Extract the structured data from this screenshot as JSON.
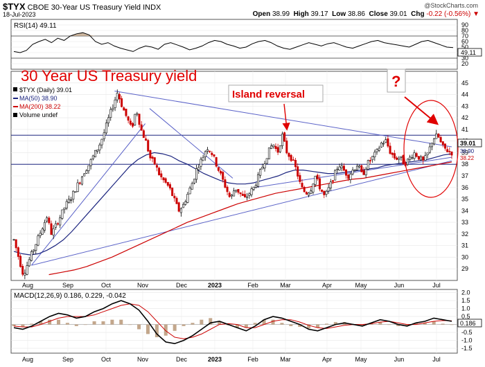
{
  "header": {
    "ticker": "$TYX",
    "name": "CBOE 30-Year US Treasury Yield INDX",
    "date": "18-Jul-2023",
    "open_label": "Open",
    "open": "38.99",
    "high_label": "High",
    "high": "39.17",
    "low_label": "Low",
    "low": "38.86",
    "close_label": "Close",
    "close": "39.01",
    "chg_label": "Chg",
    "chg": "-0.22 (-0.56%)",
    "brand": "@StockCharts.com"
  },
  "colors": {
    "up": "#000000",
    "down": "#cc0000",
    "ma50": "#1a237e",
    "ma200": "#cc0000",
    "trend": "#5a62c8",
    "annotation": "#e00000"
  },
  "chart_data": [
    {
      "type": "line",
      "panel": "RSI",
      "legend": "RSI(14) 49.11",
      "ylim": [
        10,
        100
      ],
      "ticks": [
        90,
        80,
        70,
        60,
        50,
        40,
        30,
        20
      ],
      "reference_lines": [
        70,
        30
      ],
      "last_value": "49.11",
      "series": [
        {
          "values": [
            42,
            40,
            44,
            55,
            60,
            64,
            58,
            66,
            62,
            70,
            74,
            76,
            72,
            60,
            55,
            58,
            52,
            48,
            45,
            42,
            48,
            52,
            50,
            46,
            55,
            58,
            54,
            50,
            45,
            48,
            52,
            58,
            62,
            60,
            55,
            52,
            48,
            50,
            56,
            60,
            62,
            58,
            52,
            48,
            46,
            50,
            54,
            58,
            55,
            52,
            56,
            58,
            54,
            50,
            48,
            52,
            56,
            60,
            62,
            58,
            56,
            54,
            52,
            50,
            55,
            60,
            62,
            58,
            54,
            50,
            49
          ]
        }
      ]
    },
    {
      "type": "candlestick",
      "panel": "Price",
      "title": "30 Year US Treasury yield",
      "legend": [
        "$TYX (Daily) 39.01",
        "MA(50) 38.90",
        "MA(200) 38.22",
        "Volume undef"
      ],
      "x_labels": [
        "Aug",
        "Sep",
        "Oct",
        "Nov",
        "Dec",
        "2023",
        "Feb",
        "Mar",
        "Apr",
        "May",
        "Jun",
        "Jul"
      ],
      "ylim": [
        28,
        46
      ],
      "ticks": [
        45,
        44,
        43,
        42,
        41,
        40,
        39,
        38,
        37,
        36,
        35,
        34,
        33,
        32,
        31,
        30,
        29
      ],
      "last_value": "39.01",
      "ma50_label": "38.90",
      "ma200_label": "38.22",
      "annotations": {
        "island": "Island reversal",
        "question": "?"
      },
      "price_path": [
        31.5,
        30.0,
        28.5,
        29.5,
        30.5,
        31.5,
        32.5,
        33.5,
        32.0,
        32.8,
        33.6,
        34.5,
        35.0,
        35.8,
        36.6,
        37.4,
        38.0,
        38.8,
        39.5,
        40.5,
        41.8,
        43.0,
        44.2,
        43.0,
        42.0,
        41.0,
        42.8,
        41.0,
        40.0,
        38.5,
        38.0,
        37.0,
        36.5,
        36.0,
        35.0,
        34.0,
        34.5,
        35.5,
        36.5,
        37.8,
        38.5,
        39.5,
        39.0,
        38.0,
        37.0,
        36.0,
        35.0,
        36.0,
        35.5,
        35.0,
        35.5,
        36.0,
        37.0,
        38.0,
        39.0,
        39.8,
        39.0,
        40.5,
        39.0,
        38.5,
        37.5,
        36.0,
        35.5,
        35.8,
        37.0,
        36.0,
        35.2,
        36.0,
        37.0,
        38.0,
        37.5,
        37.0,
        37.5,
        38.0,
        37.0,
        38.0,
        38.5,
        39.0,
        39.8,
        40.0,
        39.0,
        38.5,
        38.6,
        38.0,
        38.5,
        39.0,
        38.6,
        38.2,
        39.0,
        40.2,
        40.5,
        39.5,
        39.2,
        39.0
      ],
      "ma50": [
        30.5,
        30.3,
        30.2,
        30.3,
        30.6,
        31.0,
        31.5,
        32.2,
        33.0,
        33.8,
        34.6,
        35.4,
        36.2,
        37.0,
        37.8,
        38.4,
        38.8,
        39.0,
        38.9,
        38.7,
        38.3,
        38.0,
        37.6,
        37.2,
        36.9,
        36.6,
        36.4,
        36.3,
        36.3,
        36.4,
        36.6,
        36.8,
        37.0,
        37.3,
        37.5,
        37.5,
        37.4,
        37.3,
        37.2,
        37.2,
        37.3,
        37.4,
        37.5,
        37.6,
        37.7,
        37.9,
        38.0,
        38.1,
        38.2,
        38.3,
        38.4,
        38.6,
        38.8,
        38.9
      ],
      "ma200": [
        28.5,
        28.7,
        28.9,
        29.2,
        29.6,
        30.0,
        30.5,
        31.0,
        31.5,
        32.0,
        32.5,
        33.0,
        33.4,
        33.8,
        34.2,
        34.6,
        34.9,
        35.2,
        35.5,
        35.7,
        35.9,
        36.1,
        36.3,
        36.5,
        36.7,
        36.8,
        37.0,
        37.2,
        37.4,
        37.6,
        37.8,
        38.0,
        38.2
      ]
    },
    {
      "type": "line",
      "panel": "MACD",
      "legend": "MACD(12,26,9) 0.186, 0.229, -0.042",
      "ylim": [
        -1.8,
        2.2
      ],
      "ticks": [
        "2.0",
        "1.5",
        "1.0",
        "0.5",
        "0.0",
        "-0.5",
        "-1.0",
        "-1.5"
      ],
      "last_value": "0.186",
      "x_labels": [
        "Aug",
        "Sep",
        "Oct",
        "Nov",
        "Dec",
        "2023",
        "Feb",
        "Mar",
        "Apr",
        "May",
        "Jun",
        "Jul"
      ],
      "series": [
        {
          "values": [
            -0.2,
            -0.3,
            -0.1,
            0.2,
            0.5,
            0.7,
            0.6,
            0.4,
            0.5,
            0.8,
            1.0,
            1.3,
            1.5,
            1.3,
            0.9,
            0.2,
            -0.6,
            -1.1,
            -1.2,
            -1.0,
            -0.7,
            -0.3,
            0.1,
            0.2,
            0.0,
            -0.2,
            -0.4,
            -0.1,
            0.3,
            0.5,
            0.4,
            0.2,
            0.0,
            -0.3,
            -0.4,
            -0.2,
            0.0,
            0.1,
            0.0,
            -0.1,
            0.1,
            0.3,
            0.2,
            0.0,
            -0.1,
            0.1,
            0.2,
            0.4,
            0.3,
            0.2
          ]
        },
        {
          "values": [
            -0.1,
            -0.15,
            -0.15,
            0.0,
            0.2,
            0.4,
            0.5,
            0.5,
            0.5,
            0.6,
            0.8,
            1.0,
            1.2,
            1.3,
            1.2,
            0.8,
            0.2,
            -0.4,
            -0.8,
            -0.9,
            -0.8,
            -0.6,
            -0.3,
            0.0,
            0.05,
            0.0,
            -0.2,
            -0.2,
            0.0,
            0.2,
            0.3,
            0.3,
            0.15,
            -0.05,
            -0.2,
            -0.25,
            -0.15,
            -0.05,
            0.0,
            0.0,
            0.05,
            0.15,
            0.2,
            0.1,
            0.0,
            0.0,
            0.1,
            0.2,
            0.25,
            0.23
          ]
        }
      ]
    }
  ]
}
